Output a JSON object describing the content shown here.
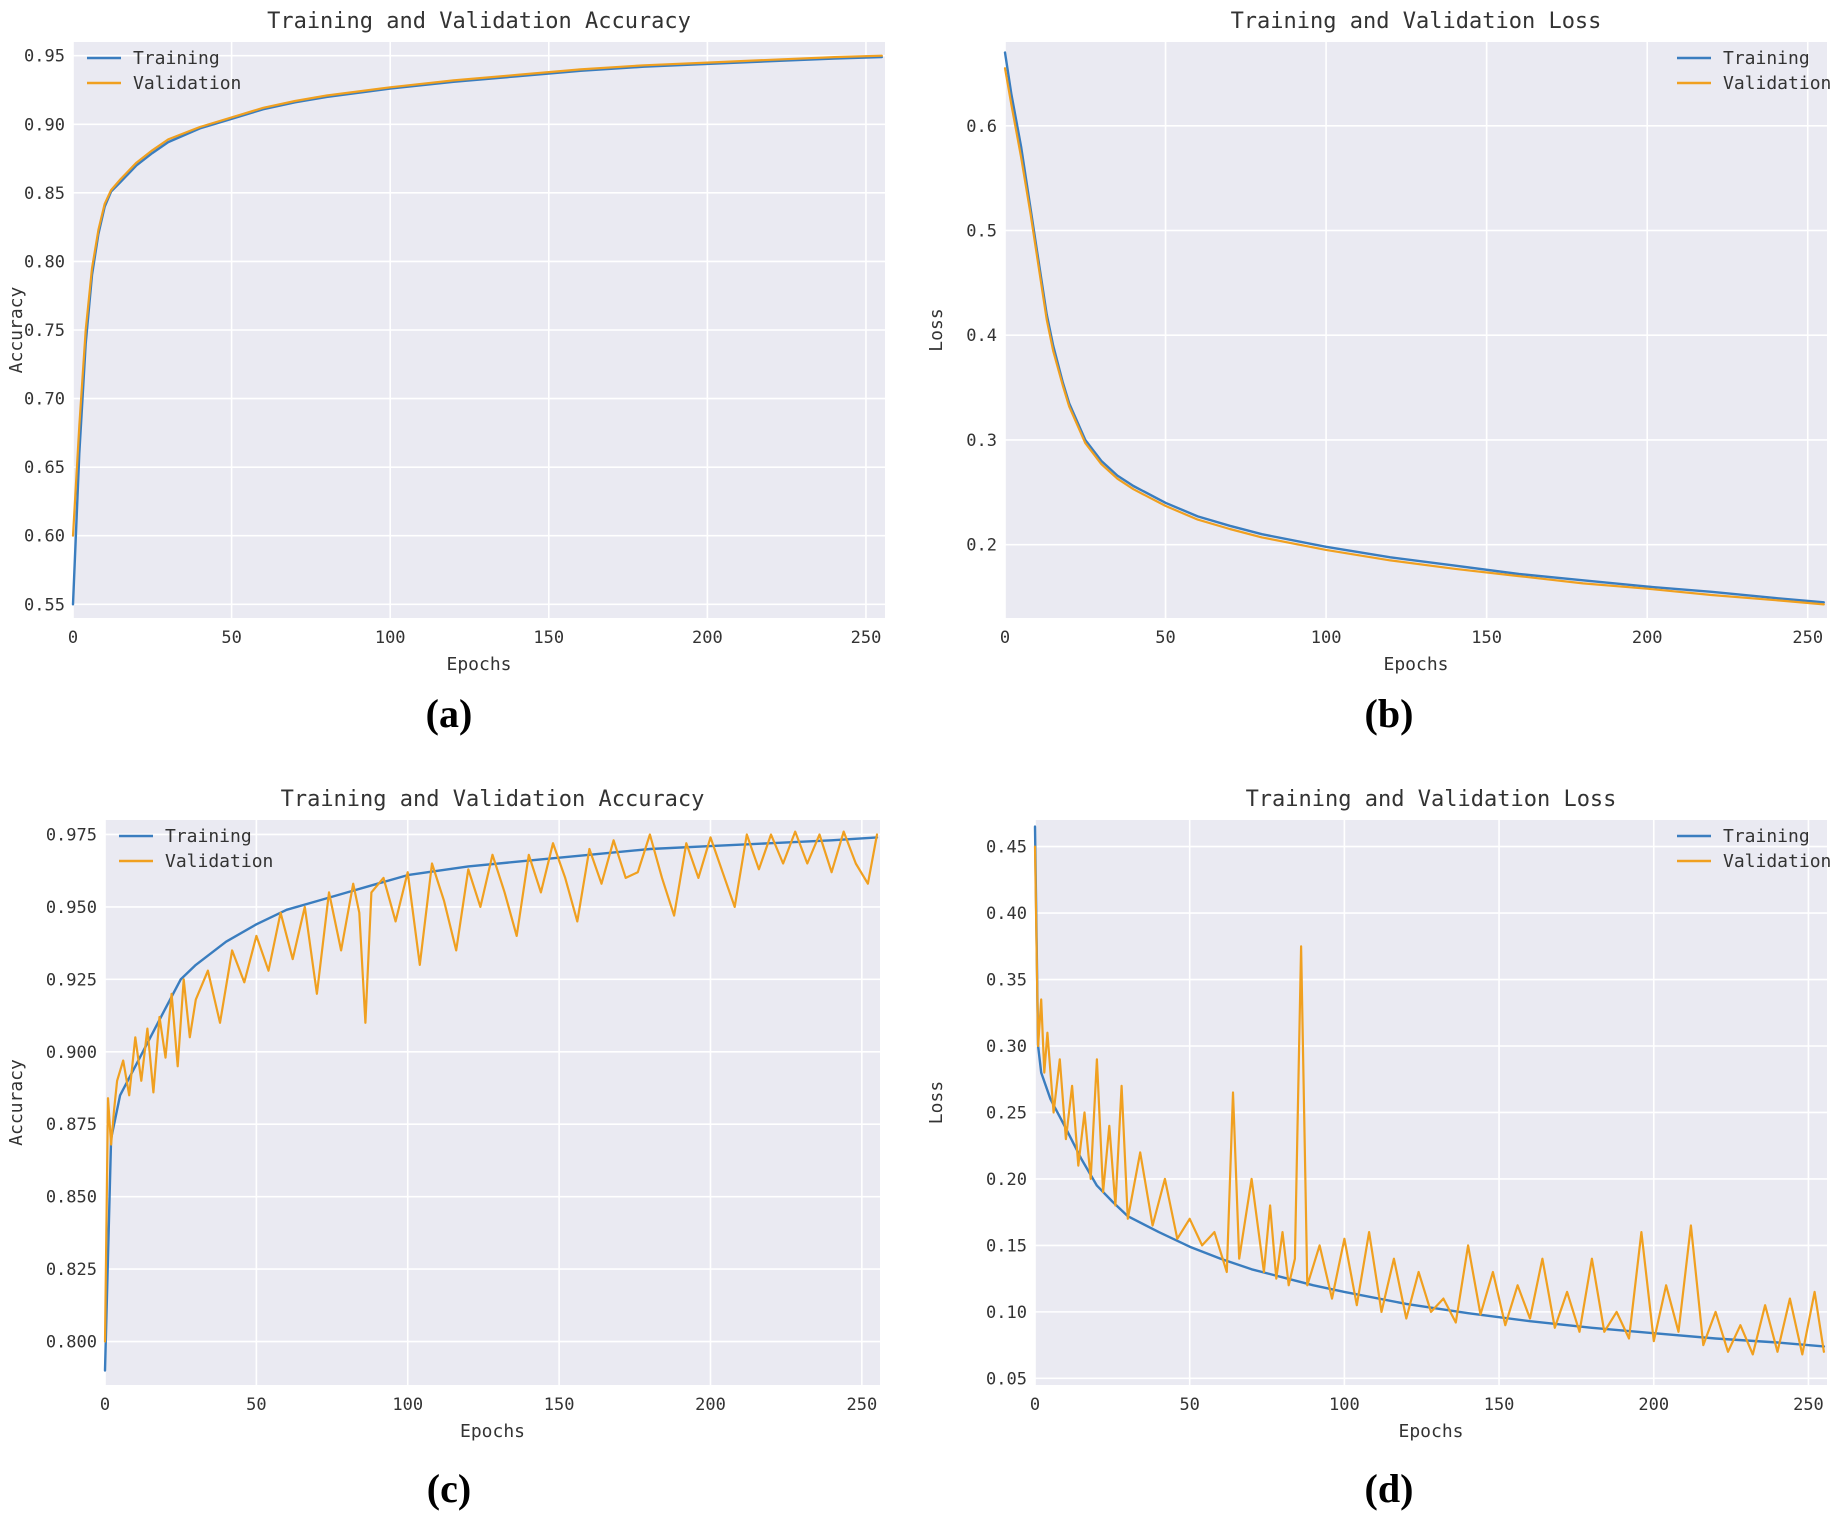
{
  "colors": {
    "training": "#3a7dbf",
    "validation": "#f0a020",
    "background": "#eaeaf2"
  },
  "captions": [
    "(a)",
    "(b)",
    "(c)",
    "(d)"
  ],
  "chart_data": [
    {
      "type": "line",
      "title": "Training and Validation Accuracy",
      "xlabel": "Epochs",
      "ylabel": "Accuracy",
      "xlim": [
        0,
        256
      ],
      "ylim": [
        0.54,
        0.96
      ],
      "xticks": [
        0,
        50,
        100,
        150,
        200,
        250
      ],
      "yticks": [
        0.55,
        0.6,
        0.65,
        0.7,
        0.75,
        0.8,
        0.85,
        0.9,
        0.95
      ],
      "ytick_labels": [
        "0.55",
        "0.60",
        "0.65",
        "0.70",
        "0.75",
        "0.80",
        "0.85",
        "0.90",
        "0.95"
      ],
      "legend": "top-left",
      "grid": true,
      "series": [
        {
          "name": "Training",
          "x": [
            0,
            2,
            4,
            6,
            8,
            10,
            12,
            15,
            20,
            25,
            30,
            40,
            50,
            60,
            70,
            80,
            100,
            120,
            140,
            160,
            180,
            200,
            220,
            240,
            255
          ],
          "values": [
            0.55,
            0.66,
            0.74,
            0.79,
            0.82,
            0.84,
            0.851,
            0.858,
            0.87,
            0.879,
            0.887,
            0.897,
            0.904,
            0.911,
            0.916,
            0.92,
            0.926,
            0.931,
            0.935,
            0.939,
            0.942,
            0.944,
            0.946,
            0.948,
            0.949
          ]
        },
        {
          "name": "Validation",
          "x": [
            0,
            2,
            4,
            6,
            8,
            10,
            12,
            15,
            20,
            25,
            30,
            40,
            50,
            60,
            70,
            80,
            100,
            120,
            140,
            160,
            180,
            200,
            220,
            240,
            255
          ],
          "values": [
            0.6,
            0.68,
            0.75,
            0.795,
            0.823,
            0.842,
            0.852,
            0.86,
            0.872,
            0.881,
            0.889,
            0.898,
            0.905,
            0.912,
            0.917,
            0.921,
            0.927,
            0.932,
            0.936,
            0.94,
            0.943,
            0.945,
            0.947,
            0.949,
            0.95
          ]
        }
      ]
    },
    {
      "type": "line",
      "title": "Training and Validation Loss",
      "xlabel": "Epochs",
      "ylabel": "Loss",
      "xlim": [
        0,
        256
      ],
      "ylim": [
        0.13,
        0.68
      ],
      "xticks": [
        0,
        50,
        100,
        150,
        200,
        250
      ],
      "yticks": [
        0.2,
        0.3,
        0.4,
        0.5,
        0.6
      ],
      "ytick_labels": [
        "0.2",
        "0.3",
        "0.4",
        "0.5",
        "0.6"
      ],
      "legend": "top-right",
      "grid": true,
      "series": [
        {
          "name": "Training",
          "x": [
            0,
            2,
            5,
            8,
            10,
            13,
            15,
            18,
            20,
            25,
            30,
            35,
            40,
            50,
            60,
            70,
            80,
            100,
            120,
            140,
            160,
            180,
            200,
            220,
            240,
            255
          ],
          "values": [
            0.67,
            0.63,
            0.58,
            0.52,
            0.48,
            0.42,
            0.39,
            0.355,
            0.335,
            0.3,
            0.28,
            0.266,
            0.256,
            0.24,
            0.227,
            0.218,
            0.21,
            0.198,
            0.188,
            0.18,
            0.172,
            0.166,
            0.16,
            0.155,
            0.149,
            0.145
          ]
        },
        {
          "name": "Validation",
          "x": [
            0,
            2,
            5,
            8,
            10,
            13,
            15,
            18,
            20,
            25,
            30,
            35,
            40,
            50,
            60,
            70,
            80,
            100,
            120,
            140,
            160,
            180,
            200,
            220,
            240,
            255
          ],
          "values": [
            0.655,
            0.62,
            0.57,
            0.515,
            0.475,
            0.415,
            0.385,
            0.352,
            0.332,
            0.297,
            0.277,
            0.263,
            0.253,
            0.237,
            0.224,
            0.215,
            0.207,
            0.195,
            0.185,
            0.177,
            0.17,
            0.163,
            0.158,
            0.152,
            0.147,
            0.143
          ]
        }
      ]
    },
    {
      "type": "line",
      "title": "Training and Validation Accuracy",
      "xlabel": "Epochs",
      "ylabel": "Accuracy",
      "xlim": [
        0,
        256
      ],
      "ylim": [
        0.785,
        0.98
      ],
      "xticks": [
        0,
        50,
        100,
        150,
        200,
        250
      ],
      "yticks": [
        0.8,
        0.825,
        0.85,
        0.875,
        0.9,
        0.925,
        0.95,
        0.975
      ],
      "ytick_labels": [
        "0.800",
        "0.825",
        "0.850",
        "0.875",
        "0.900",
        "0.925",
        "0.950",
        "0.975"
      ],
      "legend": "top-left",
      "grid": true,
      "series": [
        {
          "name": "Training",
          "x": [
            0,
            2,
            5,
            10,
            15,
            20,
            25,
            30,
            40,
            50,
            60,
            70,
            80,
            90,
            100,
            120,
            140,
            160,
            180,
            200,
            220,
            240,
            255
          ],
          "values": [
            0.79,
            0.87,
            0.885,
            0.895,
            0.905,
            0.915,
            0.925,
            0.93,
            0.938,
            0.944,
            0.949,
            0.952,
            0.955,
            0.958,
            0.961,
            0.964,
            0.966,
            0.968,
            0.97,
            0.971,
            0.972,
            0.973,
            0.974
          ]
        },
        {
          "name": "Validation",
          "x": [
            0,
            1,
            2,
            3,
            4,
            6,
            8,
            10,
            12,
            14,
            16,
            18,
            20,
            22,
            24,
            26,
            28,
            30,
            34,
            38,
            42,
            46,
            50,
            54,
            58,
            62,
            66,
            70,
            74,
            78,
            82,
            84,
            86,
            88,
            92,
            96,
            100,
            104,
            108,
            112,
            116,
            120,
            124,
            128,
            132,
            136,
            140,
            144,
            148,
            152,
            156,
            160,
            164,
            168,
            172,
            176,
            180,
            184,
            188,
            192,
            196,
            200,
            204,
            208,
            212,
            216,
            220,
            224,
            228,
            232,
            236,
            240,
            244,
            248,
            252,
            255
          ],
          "values": [
            0.8,
            0.884,
            0.868,
            0.88,
            0.89,
            0.897,
            0.885,
            0.905,
            0.89,
            0.908,
            0.886,
            0.912,
            0.898,
            0.92,
            0.895,
            0.925,
            0.905,
            0.918,
            0.928,
            0.91,
            0.935,
            0.924,
            0.94,
            0.928,
            0.948,
            0.932,
            0.95,
            0.92,
            0.955,
            0.935,
            0.958,
            0.948,
            0.91,
            0.955,
            0.96,
            0.945,
            0.962,
            0.93,
            0.965,
            0.952,
            0.935,
            0.963,
            0.95,
            0.968,
            0.955,
            0.94,
            0.968,
            0.955,
            0.972,
            0.96,
            0.945,
            0.97,
            0.958,
            0.973,
            0.96,
            0.962,
            0.975,
            0.96,
            0.947,
            0.972,
            0.96,
            0.974,
            0.962,
            0.95,
            0.975,
            0.963,
            0.975,
            0.965,
            0.976,
            0.965,
            0.975,
            0.962,
            0.976,
            0.965,
            0.958,
            0.975
          ]
        }
      ]
    },
    {
      "type": "line",
      "title": "Training and Validation Loss",
      "xlabel": "Epochs",
      "ylabel": "Loss",
      "xlim": [
        0,
        256
      ],
      "ylim": [
        0.045,
        0.47
      ],
      "xticks": [
        0,
        50,
        100,
        150,
        200,
        250
      ],
      "yticks": [
        0.05,
        0.1,
        0.15,
        0.2,
        0.25,
        0.3,
        0.35,
        0.4,
        0.45
      ],
      "ytick_labels": [
        "0.05",
        "0.10",
        "0.15",
        "0.20",
        "0.25",
        "0.30",
        "0.35",
        "0.40",
        "0.45"
      ],
      "legend": "top-right",
      "grid": true,
      "series": [
        {
          "name": "Training",
          "x": [
            0,
            1,
            2,
            5,
            10,
            15,
            20,
            25,
            30,
            40,
            50,
            60,
            70,
            80,
            90,
            100,
            120,
            140,
            160,
            180,
            200,
            220,
            240,
            255
          ],
          "values": [
            0.465,
            0.3,
            0.28,
            0.26,
            0.238,
            0.215,
            0.195,
            0.183,
            0.172,
            0.16,
            0.149,
            0.14,
            0.132,
            0.126,
            0.12,
            0.115,
            0.106,
            0.099,
            0.093,
            0.088,
            0.084,
            0.08,
            0.077,
            0.074
          ]
        },
        {
          "name": "Validation",
          "x": [
            0,
            1,
            2,
            3,
            4,
            6,
            8,
            10,
            12,
            14,
            16,
            18,
            20,
            22,
            24,
            26,
            28,
            30,
            34,
            38,
            42,
            46,
            50,
            54,
            58,
            62,
            64,
            66,
            70,
            74,
            76,
            78,
            80,
            82,
            84,
            86,
            88,
            92,
            96,
            100,
            104,
            108,
            112,
            116,
            120,
            124,
            128,
            132,
            136,
            140,
            144,
            148,
            152,
            156,
            160,
            164,
            168,
            172,
            176,
            180,
            184,
            188,
            192,
            196,
            200,
            204,
            208,
            212,
            216,
            220,
            224,
            228,
            232,
            236,
            240,
            244,
            248,
            252,
            255
          ],
          "values": [
            0.45,
            0.3,
            0.335,
            0.28,
            0.31,
            0.25,
            0.29,
            0.23,
            0.27,
            0.21,
            0.25,
            0.2,
            0.29,
            0.19,
            0.24,
            0.18,
            0.27,
            0.17,
            0.22,
            0.165,
            0.2,
            0.155,
            0.17,
            0.15,
            0.16,
            0.13,
            0.265,
            0.14,
            0.2,
            0.13,
            0.18,
            0.125,
            0.16,
            0.12,
            0.14,
            0.375,
            0.12,
            0.15,
            0.11,
            0.155,
            0.105,
            0.16,
            0.1,
            0.14,
            0.095,
            0.13,
            0.1,
            0.11,
            0.092,
            0.15,
            0.098,
            0.13,
            0.09,
            0.12,
            0.095,
            0.14,
            0.088,
            0.115,
            0.085,
            0.14,
            0.085,
            0.1,
            0.08,
            0.16,
            0.078,
            0.12,
            0.085,
            0.165,
            0.075,
            0.1,
            0.07,
            0.09,
            0.068,
            0.105,
            0.07,
            0.11,
            0.068,
            0.115,
            0.07
          ]
        }
      ]
    }
  ]
}
